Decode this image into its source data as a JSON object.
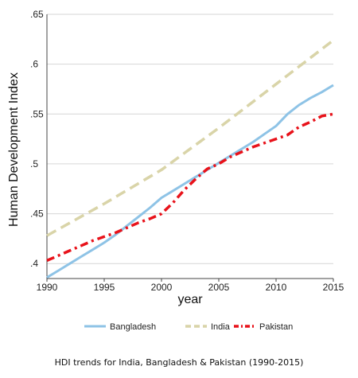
{
  "chart_data": {
    "type": "line",
    "title": "",
    "caption": "HDI trends for India, Bangladesh & Pakistan (1990-2015)",
    "xlabel": "year",
    "ylabel": "Human Development Index",
    "xlim": [
      1990,
      2015
    ],
    "ylim": [
      0.385,
      0.65
    ],
    "xticks": [
      1990,
      1995,
      2000,
      2005,
      2010,
      2015
    ],
    "yticks": [
      0.4,
      0.45,
      0.5,
      0.55,
      0.6,
      0.65
    ],
    "ytick_labels": [
      ".4",
      ".45",
      ".5",
      ".55",
      ".6",
      ".65"
    ],
    "grid": true,
    "legend_position": "bottom",
    "series": [
      {
        "name": "Bangladesh",
        "color": "#8ec3e6",
        "style": "solid",
        "x": [
          1990,
          1991,
          1992,
          1993,
          1994,
          1995,
          1996,
          1997,
          1998,
          1999,
          2000,
          2001,
          2002,
          2003,
          2004,
          2005,
          2006,
          2007,
          2008,
          2009,
          2010,
          2011,
          2012,
          2013,
          2014,
          2015
        ],
        "y": [
          0.386,
          0.393,
          0.4,
          0.407,
          0.414,
          0.421,
          0.429,
          0.438,
          0.447,
          0.456,
          0.466,
          0.473,
          0.48,
          0.487,
          0.494,
          0.501,
          0.508,
          0.515,
          0.522,
          0.53,
          0.538,
          0.55,
          0.559,
          0.566,
          0.572,
          0.579
        ]
      },
      {
        "name": "India",
        "color": "#d9d4a8",
        "style": "dash",
        "x": [
          1990,
          1995,
          2000,
          2005,
          2010,
          2015
        ],
        "y": [
          0.428,
          0.46,
          0.494,
          0.536,
          0.58,
          0.624
        ]
      },
      {
        "name": "Pakistan",
        "color": "#e8121a",
        "style": "dashdot",
        "x": [
          1990,
          1991,
          1992,
          1993,
          1994,
          1995,
          1996,
          1997,
          1998,
          1999,
          2000,
          2001,
          2002,
          2003,
          2004,
          2005,
          2006,
          2007,
          2008,
          2009,
          2010,
          2011,
          2012,
          2013,
          2014,
          2015
        ],
        "y": [
          0.403,
          0.408,
          0.413,
          0.418,
          0.423,
          0.427,
          0.431,
          0.436,
          0.441,
          0.445,
          0.45,
          0.461,
          0.474,
          0.485,
          0.495,
          0.5,
          0.507,
          0.512,
          0.517,
          0.521,
          0.525,
          0.529,
          0.537,
          0.542,
          0.548,
          0.55
        ]
      }
    ]
  }
}
